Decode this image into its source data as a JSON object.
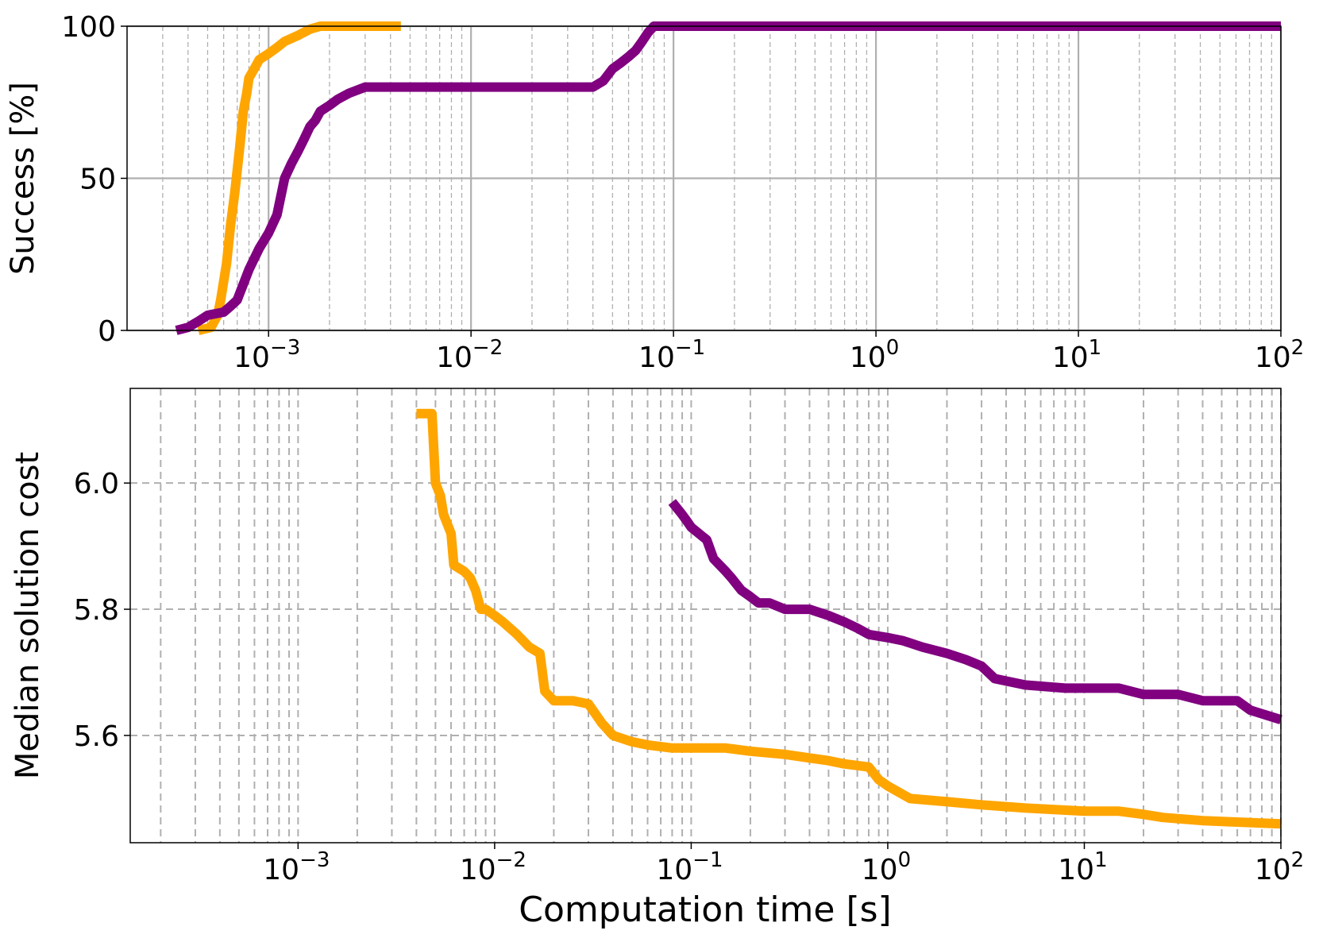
{
  "chart_data": [
    {
      "type": "line",
      "xlabel": "",
      "ylabel": "Success [%]",
      "xscale": "log",
      "xlim": [
        0.0002,
        100
      ],
      "ylim": [
        0,
        100
      ],
      "xticks": [
        0.001,
        0.01,
        0.1,
        1,
        10,
        100
      ],
      "xtick_labels": [
        {
          "base": "10",
          "exp": "−3"
        },
        {
          "base": "10",
          "exp": "−2"
        },
        {
          "base": "10",
          "exp": "−1"
        },
        {
          "base": "10",
          "exp": "0"
        },
        {
          "base": "10",
          "exp": "1"
        },
        {
          "base": "10",
          "exp": "2"
        }
      ],
      "yticks": [
        0,
        50,
        100
      ],
      "ytick_labels": [
        "0",
        "50",
        "100"
      ],
      "grid": {
        "major": true,
        "minor_x": true
      },
      "series": [
        {
          "color": "#FFA500",
          "x": [
            0.00045,
            0.00052,
            0.00056,
            0.00058,
            0.00062,
            0.00065,
            0.00068,
            0.00072,
            0.00075,
            0.00078,
            0.0008,
            0.00085,
            0.0009,
            0.001,
            0.0011,
            0.0012,
            0.0014,
            0.0016,
            0.0018,
            0.002,
            0.004,
            0.0045
          ],
          "y": [
            0,
            1,
            5,
            10,
            22,
            35,
            45,
            60,
            72,
            78,
            83,
            86,
            89,
            91,
            93,
            95,
            97,
            99,
            100,
            100,
            100,
            100
          ]
        },
        {
          "color": "#800080",
          "x": [
            0.00035,
            0.0004,
            0.00045,
            0.0005,
            0.0006,
            0.00065,
            0.0007,
            0.0008,
            0.0009,
            0.001,
            0.0011,
            0.0012,
            0.0013,
            0.0014,
            0.0015,
            0.0016,
            0.0017,
            0.0018,
            0.002,
            0.0022,
            0.0025,
            0.003,
            0.01,
            0.04,
            0.045,
            0.05,
            0.055,
            0.06,
            0.065,
            0.07,
            0.075,
            0.08,
            0.1,
            1,
            10,
            100
          ],
          "y": [
            0,
            1,
            3,
            5,
            6,
            8,
            10,
            20,
            27,
            32,
            38,
            50,
            55,
            59,
            63,
            67,
            69,
            72,
            74,
            76,
            78,
            80,
            80,
            80,
            82,
            86,
            88,
            90,
            92,
            95,
            98,
            100,
            100,
            100,
            100,
            100
          ]
        }
      ]
    },
    {
      "type": "line",
      "xlabel": "Computation time [s]",
      "ylabel": "Median solution cost",
      "xscale": "log",
      "xlim": [
        0.00014,
        100
      ],
      "ylim": [
        5.43,
        6.15
      ],
      "xticks": [
        0.001,
        0.01,
        0.1,
        1,
        10,
        100
      ],
      "xtick_labels": [
        {
          "base": "10",
          "exp": "−3"
        },
        {
          "base": "10",
          "exp": "−2"
        },
        {
          "base": "10",
          "exp": "−1"
        },
        {
          "base": "10",
          "exp": "0"
        },
        {
          "base": "10",
          "exp": "1"
        },
        {
          "base": "10",
          "exp": "2"
        }
      ],
      "yticks": [
        5.6,
        5.8,
        6.0
      ],
      "ytick_labels": [
        "5.6",
        "5.8",
        "6.0"
      ],
      "grid": {
        "major": true,
        "minor_x": true,
        "style": "dashed"
      },
      "series": [
        {
          "color": "#FFA500",
          "x": [
            0.004,
            0.0048,
            0.005,
            0.0053,
            0.0055,
            0.006,
            0.0062,
            0.007,
            0.0075,
            0.008,
            0.0085,
            0.009,
            0.01,
            0.011,
            0.013,
            0.015,
            0.017,
            0.018,
            0.02,
            0.025,
            0.03,
            0.035,
            0.04,
            0.05,
            0.06,
            0.08,
            0.1,
            0.15,
            0.2,
            0.3,
            0.5,
            0.6,
            0.8,
            0.9,
            1.0,
            1.3,
            2,
            3,
            5,
            10,
            15,
            20,
            25,
            40,
            100
          ],
          "y": [
            6.11,
            6.11,
            6.0,
            5.98,
            5.95,
            5.92,
            5.87,
            5.86,
            5.85,
            5.83,
            5.8,
            5.8,
            5.79,
            5.78,
            5.76,
            5.74,
            5.73,
            5.67,
            5.655,
            5.655,
            5.65,
            5.62,
            5.6,
            5.59,
            5.585,
            5.58,
            5.58,
            5.58,
            5.575,
            5.57,
            5.56,
            5.555,
            5.55,
            5.53,
            5.52,
            5.5,
            5.495,
            5.49,
            5.485,
            5.48,
            5.48,
            5.475,
            5.47,
            5.465,
            5.46
          ]
        },
        {
          "color": "#800080",
          "x": [
            0.08,
            0.09,
            0.095,
            0.1,
            0.12,
            0.13,
            0.15,
            0.16,
            0.18,
            0.2,
            0.22,
            0.25,
            0.3,
            0.4,
            0.5,
            0.6,
            0.7,
            0.8,
            1.0,
            1.2,
            1.5,
            2,
            2.5,
            3,
            3.5,
            5,
            8,
            10,
            15,
            20,
            30,
            40,
            60,
            70,
            100
          ],
          "y": [
            5.97,
            5.95,
            5.94,
            5.93,
            5.91,
            5.88,
            5.86,
            5.85,
            5.83,
            5.82,
            5.81,
            5.81,
            5.8,
            5.8,
            5.79,
            5.78,
            5.77,
            5.76,
            5.755,
            5.75,
            5.74,
            5.73,
            5.72,
            5.71,
            5.69,
            5.68,
            5.675,
            5.675,
            5.675,
            5.665,
            5.665,
            5.655,
            5.655,
            5.64,
            5.625
          ]
        }
      ]
    }
  ]
}
